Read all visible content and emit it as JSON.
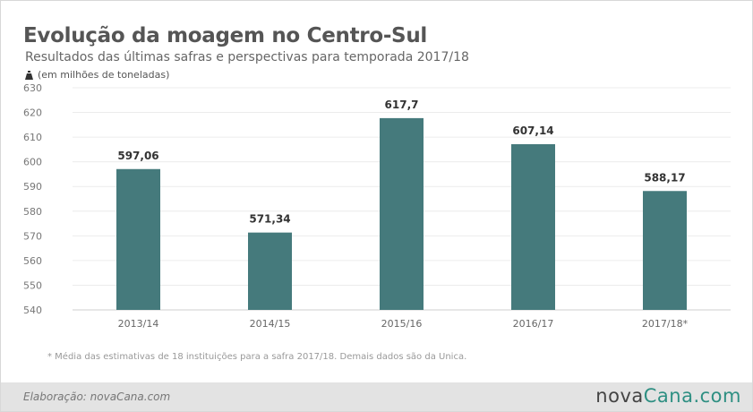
{
  "header": {
    "title": "Evolução da moagem no Centro-Sul",
    "subtitle": "Resultados das últimas safras e perspectivas para temporada 2017/18",
    "unit_label": "(em milhões de toneladas)",
    "unit_icon": "weight-icon"
  },
  "chart_data": {
    "type": "bar",
    "title": "Evolução da moagem no Centro-Sul",
    "subtitle": "Resultados das últimas safras e perspectivas para temporada 2017/18",
    "xlabel": "",
    "ylabel": "(em milhões de toneladas)",
    "categories": [
      "2013/14",
      "2014/15",
      "2015/16",
      "2016/17",
      "2017/18*"
    ],
    "values": [
      597.06,
      571.34,
      617.7,
      607.14,
      588.17
    ],
    "value_labels": [
      "597,06",
      "571,34",
      "617,7",
      "607,14",
      "588,17"
    ],
    "ylim": [
      540,
      630
    ],
    "yticks": [
      540,
      550,
      560,
      570,
      580,
      590,
      600,
      610,
      620,
      630
    ],
    "grid": true,
    "legend": "none",
    "bar_color": "#457a7c"
  },
  "footnote": "* Média das estimativas de 18 instituições para a safra 2017/18. Demais dados são da Unica.",
  "footer": {
    "credit": "Elaboração: novaCana.com",
    "brand_prefix": "nova",
    "brand_suffix": "Cana.com",
    "brand_accent_color": "#2e8f82"
  }
}
